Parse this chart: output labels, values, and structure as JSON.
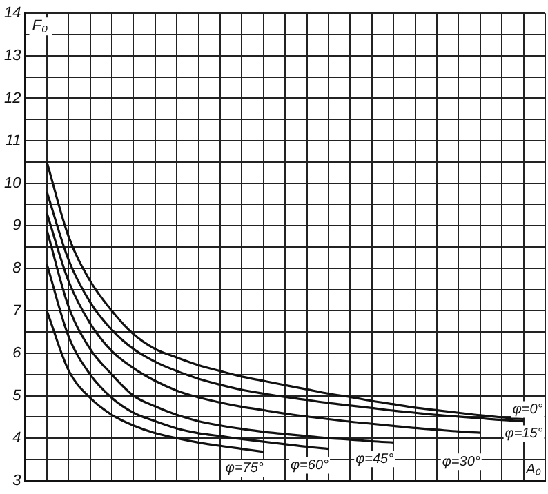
{
  "chart_data": {
    "type": "line",
    "xlabel": "A₀",
    "ylabel": "F₀",
    "categories": [
      null,
      null,
      null,
      null,
      null,
      null,
      null,
      null,
      null,
      null,
      null,
      null,
      null,
      null,
      null,
      null,
      null,
      null,
      null,
      null,
      null,
      null,
      null,
      null,
      null
    ],
    "series": [
      {
        "name": "φ=0°",
        "color": "#111111",
        "values": [
          null,
          10.5,
          8.75,
          7.7,
          7.0,
          6.45,
          6.1,
          5.9,
          5.72,
          5.58,
          5.45,
          5.35,
          5.25,
          5.15,
          5.05,
          4.97,
          4.88,
          4.8,
          4.72,
          4.66,
          4.6,
          4.54,
          4.49,
          4.45,
          null
        ]
      },
      {
        "name": "φ=15°",
        "color": "#111111",
        "values": [
          null,
          9.8,
          8.2,
          7.2,
          6.55,
          6.1,
          5.8,
          5.58,
          5.4,
          5.26,
          5.14,
          5.05,
          4.97,
          4.9,
          4.83,
          4.77,
          4.71,
          4.65,
          4.6,
          4.55,
          4.51,
          4.47,
          4.43,
          4.4,
          null
        ]
      },
      {
        "name": "φ=30°",
        "color": "#111111",
        "values": [
          null,
          9.3,
          7.7,
          6.7,
          6.05,
          5.65,
          5.35,
          5.12,
          4.96,
          4.84,
          4.74,
          4.66,
          4.58,
          4.51,
          4.45,
          4.39,
          4.34,
          4.29,
          4.24,
          4.2,
          4.16,
          4.13,
          null,
          null,
          null
        ]
      },
      {
        "name": "φ=45°",
        "color": "#111111",
        "values": [
          null,
          8.9,
          7.1,
          6.1,
          5.5,
          5.0,
          4.75,
          4.55,
          4.4,
          4.3,
          4.22,
          4.15,
          4.1,
          4.05,
          4.0,
          3.97,
          3.93,
          3.9,
          null,
          null,
          null,
          null,
          null,
          null,
          null
        ]
      },
      {
        "name": "φ=60°",
        "color": "#111111",
        "values": [
          null,
          8.1,
          6.4,
          5.5,
          4.95,
          4.6,
          4.4,
          4.23,
          4.12,
          4.05,
          3.98,
          3.92,
          3.86,
          3.8,
          3.75,
          null,
          null,
          null,
          null,
          null,
          null,
          null,
          null,
          null,
          null
        ]
      },
      {
        "name": "φ=75°",
        "color": "#111111",
        "values": [
          null,
          7.0,
          5.6,
          4.95,
          4.55,
          4.3,
          4.12,
          4.0,
          3.9,
          3.82,
          3.75,
          3.68,
          null,
          null,
          null,
          null,
          null,
          null,
          null,
          null,
          null,
          null,
          null,
          null,
          null
        ]
      }
    ],
    "ylim": [
      3,
      14
    ],
    "yticks": [
      3,
      {
        "value": 3.5,
        "label": null
      },
      4,
      {
        "value": 4.5,
        "label": null
      },
      5,
      {
        "value": 5.5,
        "label": null
      },
      6,
      {
        "value": 6.5,
        "label": null
      },
      7,
      {
        "value": 7.5,
        "label": null
      },
      8,
      {
        "value": 8.5,
        "label": null
      },
      9,
      {
        "value": 9.5,
        "label": null
      },
      10,
      {
        "value": 10.5,
        "label": null
      },
      11,
      {
        "value": 11.5,
        "label": null
      },
      12,
      {
        "value": 12.5,
        "label": null
      },
      13,
      {
        "value": 13.5,
        "label": null
      },
      14
    ],
    "tick_labels": "y",
    "grid": true,
    "legend": false,
    "marker": "none",
    "line_style": "solid"
  }
}
